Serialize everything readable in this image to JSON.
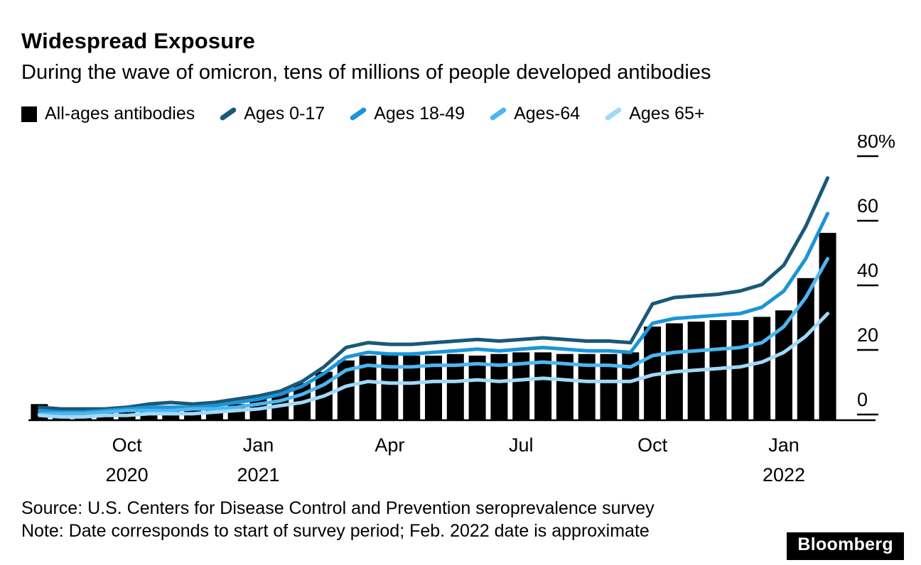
{
  "header": {
    "title": "Widespread Exposure",
    "subtitle": "During the wave of omicron, tens of millions of people developed antibodies"
  },
  "legend": {
    "items": [
      {
        "label": "All-ages antibodies",
        "swatch": "square",
        "color": "#000000"
      },
      {
        "label": "Ages 0-17",
        "swatch": "slash",
        "color": "#1a5876"
      },
      {
        "label": "Ages 18-49",
        "swatch": "slash",
        "color": "#1b94d9"
      },
      {
        "label": "Ages-64",
        "swatch": "slash",
        "color": "#4db6f0"
      },
      {
        "label": "Ages 65+",
        "swatch": "slash",
        "color": "#a0d9f7"
      }
    ]
  },
  "chart_data": {
    "type": "bar+line",
    "title": "Widespread Exposure",
    "subtitle": "During the wave of omicron, tens of millions of people developed antibodies",
    "unit": "percent seroprevalence",
    "grid": false,
    "legend_position": "top",
    "x_dates": [
      "2020-08-01",
      "2020-08-16",
      "2020-09-01",
      "2020-09-16",
      "2020-10-01",
      "2020-10-16",
      "2020-11-01",
      "2020-11-16",
      "2020-12-01",
      "2020-12-16",
      "2021-01-01",
      "2021-01-16",
      "2021-02-01",
      "2021-02-16",
      "2021-03-01",
      "2021-03-16",
      "2021-04-01",
      "2021-04-16",
      "2021-05-01",
      "2021-05-16",
      "2021-06-01",
      "2021-06-16",
      "2021-07-01",
      "2021-07-16",
      "2021-08-01",
      "2021-08-16",
      "2021-09-01",
      "2021-09-16",
      "2021-10-01",
      "2021-10-16",
      "2021-11-01",
      "2021-11-16",
      "2021-12-01",
      "2021-12-16",
      "2022-01-01",
      "2022-01-16",
      "2022-02-01"
    ],
    "bar_series": {
      "name": "All-ages antibodies",
      "color": "#000000",
      "values": [
        5,
        2.5,
        2.5,
        2.5,
        3,
        3,
        3.5,
        3.5,
        4,
        5,
        6.5,
        8.5,
        11.5,
        15,
        18.5,
        20,
        20.5,
        20,
        20,
        20.5,
        20,
        20.5,
        21,
        21,
        20.5,
        20.5,
        20.5,
        21,
        29,
        30,
        30.5,
        31,
        31,
        32,
        34,
        44,
        58
      ]
    },
    "line_series": [
      {
        "name": "Ages 0-17",
        "color": "#1a5876",
        "values": [
          4,
          3.5,
          3.5,
          3.5,
          4,
          5,
          5.5,
          5,
          5.5,
          6.5,
          7.5,
          9,
          12,
          16.5,
          22.5,
          24,
          23.5,
          23.5,
          24,
          24.5,
          25,
          24.5,
          25,
          25.5,
          25,
          24.5,
          24.5,
          24,
          36,
          38,
          38.5,
          39,
          40,
          42,
          48,
          60,
          75
        ]
      },
      {
        "name": "Ages 18-49",
        "color": "#1b94d9",
        "values": [
          3,
          2.5,
          2.5,
          3,
          3.5,
          4,
          4,
          4,
          4.5,
          5.5,
          6.5,
          8,
          10.5,
          14.5,
          19.5,
          21,
          20.5,
          20.5,
          21,
          21.5,
          22,
          21.5,
          22,
          22.5,
          22,
          21.5,
          21.5,
          21,
          30,
          31.5,
          32,
          32.5,
          33,
          35,
          40,
          50,
          64
        ]
      },
      {
        "name": "Ages-64",
        "color": "#4db6f0",
        "values": [
          2,
          2,
          2,
          2.5,
          3,
          3,
          3,
          3.5,
          3.5,
          4,
          5,
          6,
          8,
          11,
          15.5,
          17,
          16.5,
          16.5,
          17,
          17,
          17.5,
          17,
          17.5,
          18,
          17.5,
          17,
          17,
          16.5,
          20,
          21,
          21.5,
          22,
          22.5,
          24,
          29,
          38,
          50
        ]
      },
      {
        "name": "Ages 65+",
        "color": "#a0d9f7",
        "values": [
          1.5,
          1,
          1,
          1.5,
          1.5,
          2,
          2,
          2,
          2.5,
          3,
          3.5,
          4.5,
          5.5,
          7.5,
          10.5,
          12,
          11.5,
          11.5,
          12,
          12,
          12.5,
          12,
          12.5,
          13,
          12.5,
          12,
          12,
          12,
          14,
          15,
          15.5,
          16,
          16.5,
          18,
          21,
          26,
          33
        ]
      }
    ],
    "y_axis": {
      "side": "right",
      "min": 0,
      "max": 80,
      "ticks": [
        0,
        20,
        40,
        60,
        80
      ],
      "tick_labels": [
        "0",
        "20",
        "40",
        "60",
        "80%"
      ]
    },
    "x_axis": {
      "ticks": [
        {
          "index": 4,
          "label": [
            "Oct",
            "2020"
          ]
        },
        {
          "index": 10,
          "label": [
            "Jan",
            "2021"
          ]
        },
        {
          "index": 16,
          "label": [
            "Apr"
          ]
        },
        {
          "index": 22,
          "label": [
            "Jul"
          ]
        },
        {
          "index": 28,
          "label": [
            "Oct"
          ]
        },
        {
          "index": 34,
          "label": [
            "Jan",
            "2022"
          ]
        }
      ]
    }
  },
  "footer": {
    "source": "Source: U.S. Centers for Disease Control and Prevention seroprevalence survey",
    "note": "Note: Date corresponds to start of survey period; Feb. 2022 date is approximate",
    "brand": "Bloomberg"
  }
}
